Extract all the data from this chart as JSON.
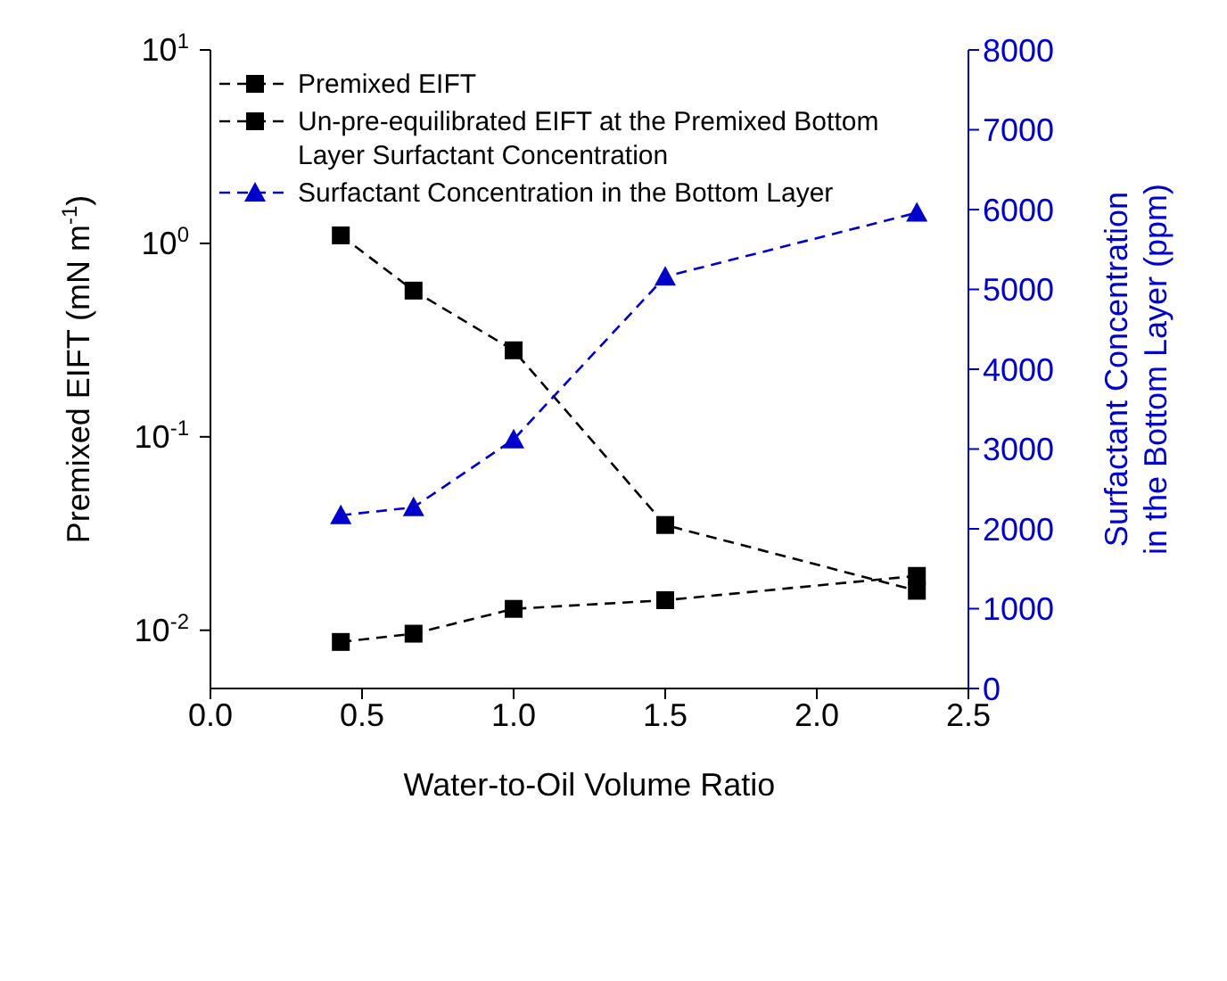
{
  "chart_data": {
    "type": "line",
    "xlabel": "Water-to-Oil Volume Ratio",
    "ylabel": "Premixed EIFT (mN m$^{-1}$)",
    "y2label": "Surfactant Concentration in the Bottom Layer (ppm)",
    "x": [
      0.43,
      0.67,
      1.0,
      1.5,
      2.33
    ],
    "series": [
      {
        "name": "Premixed EIFT",
        "color": "#000000",
        "marker": "square",
        "values": [
          1.1,
          0.57,
          0.28,
          0.035,
          0.016
        ]
      },
      {
        "name": "Un-pre-equilibrated EIFT at the Premixed Bottom Layer Surfactant Concentration",
        "color": "#000000",
        "marker": "square",
        "values": [
          0.0087,
          0.0096,
          0.0129,
          0.0143,
          0.0191
        ]
      },
      {
        "name": "Surfactant Concentration in the Bottom Layer",
        "color": "#0000cc",
        "marker": "triangle",
        "axis": "y2",
        "values": [
          2170,
          2270,
          3120,
          5160,
          5960
        ]
      }
    ],
    "xlim": [
      0,
      2.5
    ],
    "xticks": [
      {
        "value": 0,
        "label": "0.0"
      },
      {
        "value": 0.5,
        "label": "0.5"
      },
      {
        "value": 1,
        "label": "1.0"
      },
      {
        "value": 1.5,
        "label": "1.5"
      },
      {
        "value": 2,
        "label": "2.0"
      },
      {
        "value": 2.5,
        "label": "2.5"
      }
    ],
    "log": "y",
    "ylim": [
      0.005,
      10
    ],
    "yticks": [
      {
        "value": 0.01,
        "label": "10$^{-2}$"
      },
      {
        "value": 0.1,
        "label": "10$^{-1}$"
      },
      {
        "value": 1,
        "label": "10$^{0}$"
      },
      {
        "value": 10,
        "label": "10$^{1}$"
      }
    ],
    "y2lim": [
      0,
      8000
    ],
    "y2ticks": [
      0,
      1000,
      2000,
      3000,
      4000,
      5000,
      6000,
      7000,
      8000
    ],
    "line_style": "dashed",
    "grid": false,
    "legend": "top left"
  }
}
